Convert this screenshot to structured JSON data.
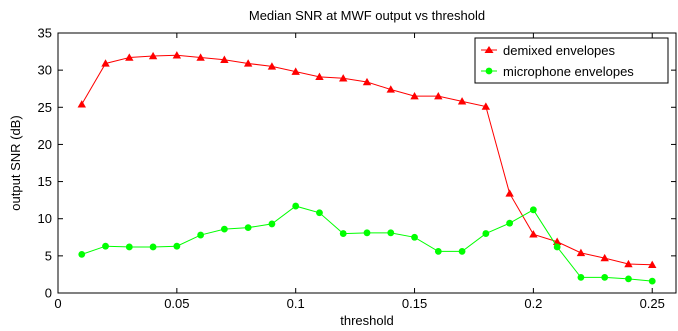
{
  "chart_data": {
    "type": "line",
    "title": "Median SNR at MWF output vs threshold",
    "xlabel": "threshold",
    "ylabel": "output SNR (dB)",
    "xlim": [
      0,
      0.26
    ],
    "ylim": [
      0,
      35
    ],
    "xticks": [
      0,
      0.05,
      0.1,
      0.15,
      0.2,
      0.25
    ],
    "xtick_labels": [
      "0",
      "0.05",
      "0.1",
      "0.15",
      "0.2",
      "0.25"
    ],
    "yticks": [
      0,
      5,
      10,
      15,
      20,
      25,
      30,
      35
    ],
    "ytick_labels": [
      "0",
      "5",
      "10",
      "15",
      "20",
      "25",
      "30",
      "35"
    ],
    "grid": false,
    "legend_position": "top-right",
    "x": [
      0.01,
      0.02,
      0.03,
      0.04,
      0.05,
      0.06,
      0.07,
      0.08,
      0.09,
      0.1,
      0.11,
      0.12,
      0.13,
      0.14,
      0.15,
      0.16,
      0.17,
      0.18,
      0.19,
      0.2,
      0.21,
      0.22,
      0.23,
      0.24,
      0.25
    ],
    "series": [
      {
        "name": "demixed envelopes",
        "color": "#ff0000",
        "marker": "triangle",
        "values": [
          25.4,
          30.9,
          31.7,
          31.9,
          32.0,
          31.7,
          31.4,
          30.9,
          30.5,
          29.8,
          29.1,
          28.9,
          28.4,
          27.4,
          26.5,
          26.5,
          25.8,
          25.1,
          13.4,
          7.9,
          6.9,
          5.4,
          4.7,
          3.9,
          3.8
        ]
      },
      {
        "name": "microphone envelopes",
        "color": "#00ff00",
        "marker": "circle",
        "values": [
          5.2,
          6.3,
          6.2,
          6.2,
          6.3,
          7.8,
          8.6,
          8.8,
          9.3,
          11.7,
          10.8,
          8.0,
          8.1,
          8.1,
          7.5,
          5.6,
          5.6,
          8.0,
          9.4,
          11.2,
          6.2,
          2.1,
          2.1,
          1.9,
          1.6
        ]
      }
    ]
  }
}
